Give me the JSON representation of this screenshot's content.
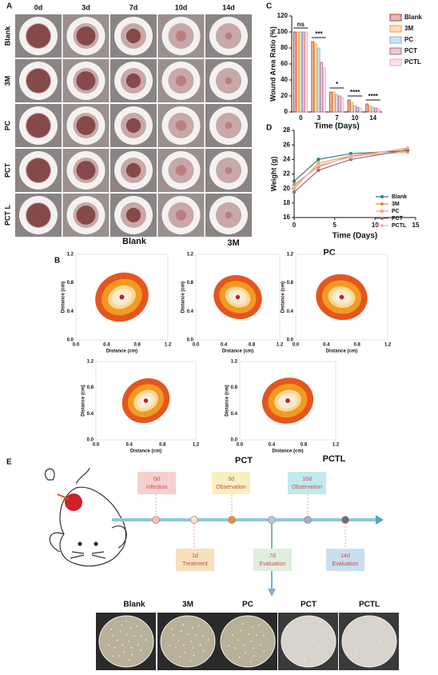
{
  "panel_labels": [
    "A",
    "B",
    "C",
    "D",
    "E"
  ],
  "panel_a": {
    "columns": [
      "0d",
      "3d",
      "7d",
      "10d",
      "14d"
    ],
    "rows": [
      "Blank",
      "3M",
      "PC",
      "PCT",
      "PCT L"
    ]
  },
  "chart_data": [
    {
      "type": "bar",
      "y_label": "Wound Area Ratio (%)",
      "x_label": "Time (Days)",
      "categories": [
        "0",
        "3",
        "7",
        "10",
        "14"
      ],
      "series": [
        {
          "name": "Blank",
          "color": "#b5372b",
          "values": [
            100,
            88,
            25,
            15,
            10
          ]
        },
        {
          "name": "3M",
          "color": "#f0a030",
          "values": [
            100,
            85,
            25,
            12,
            8
          ]
        },
        {
          "name": "PC",
          "color": "#7fb0d8",
          "values": [
            100,
            80,
            22,
            8,
            6
          ]
        },
        {
          "name": "PCT",
          "color": "#b86a80",
          "values": [
            100,
            62,
            20,
            6,
            5
          ]
        },
        {
          "name": "PCTL",
          "color": "#f0a8c0",
          "values": [
            100,
            55,
            18,
            5,
            4
          ]
        }
      ],
      "annotations": [
        "ns",
        "***",
        "*",
        "****",
        "****"
      ],
      "ylim": [
        0,
        120
      ],
      "yticks": [
        0,
        20,
        40,
        60,
        80,
        100,
        120
      ]
    },
    {
      "type": "line",
      "y_label": "Weight (g)",
      "x_label": "Time (Days)",
      "x": [
        0,
        3,
        7,
        14
      ],
      "series": [
        {
          "name": "Blank",
          "color": "#2a7f8a",
          "values": [
            21,
            24,
            24.8,
            25.2
          ]
        },
        {
          "name": "3M",
          "color": "#e8823a",
          "values": [
            20.5,
            23,
            24.5,
            25.5
          ]
        },
        {
          "name": "PC",
          "color": "#f0a850",
          "values": [
            20,
            23.5,
            24.5,
            25
          ]
        },
        {
          "name": "PCT",
          "color": "#9a6a7a",
          "values": [
            19.5,
            22.5,
            24,
            25.3
          ]
        },
        {
          "name": "PCTL",
          "color": "#f0b0c0",
          "values": [
            20.2,
            23.2,
            24.3,
            25.6
          ]
        }
      ],
      "xlim": [
        0,
        15
      ],
      "xticks": [
        0,
        5,
        10,
        15
      ],
      "ylim": [
        16,
        28
      ],
      "yticks": [
        16,
        18,
        20,
        22,
        24,
        26,
        28
      ]
    }
  ],
  "panel_b": {
    "titles": [
      "Blank",
      "3M",
      "PC",
      "PCT",
      "PCTL"
    ],
    "axis_label": "Distance (cm)",
    "ticks": [
      "0.0",
      "0.4",
      "0.8",
      "1.2"
    ]
  },
  "panel_e": {
    "timeline": [
      {
        "day": "0d",
        "event": "Infection"
      },
      {
        "day": "1d",
        "event": "Treatment"
      },
      {
        "day": "3d",
        "event": "Observation"
      },
      {
        "day": "7d",
        "event": "Evaluation"
      },
      {
        "day": "10d",
        "event": "Observation"
      },
      {
        "day": "14d",
        "event": "Evaluation"
      }
    ],
    "plates": [
      "Blank",
      "3M",
      "PC",
      "PCT",
      "PCTL"
    ]
  }
}
